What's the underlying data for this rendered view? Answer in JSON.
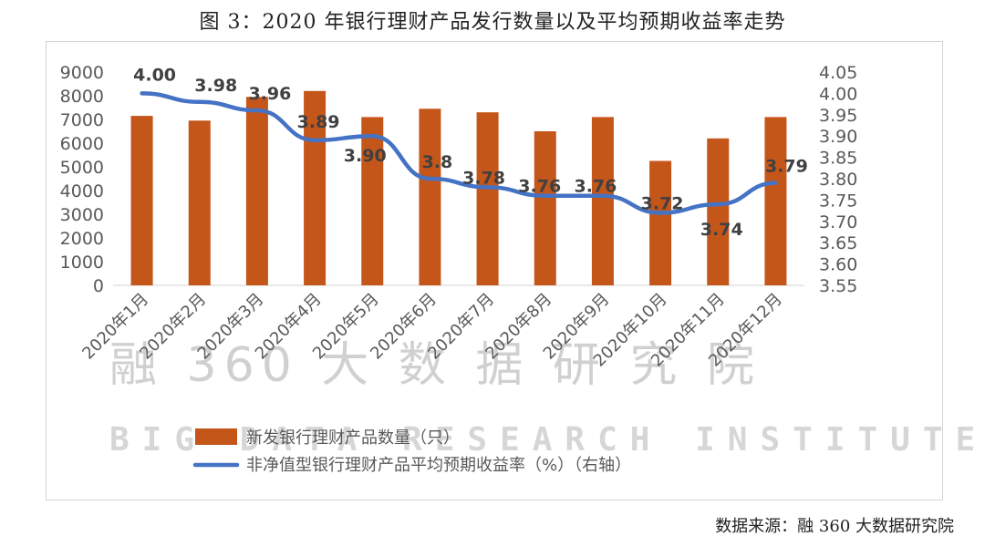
{
  "title": "图 3：2020 年银行理财产品发行数量以及平均预期收益率走势",
  "source": "数据来源：融 360 大数据研究院",
  "watermark": {
    "cn": "融 360 大 数 据 研 究 院",
    "en": "BIG DATA RESEARCH INSTITUTE"
  },
  "chart_data": {
    "type": "bar",
    "categories": [
      "2020年1月",
      "2020年2月",
      "2020年3月",
      "2020年4月",
      "2020年5月",
      "2020年6月",
      "2020年7月",
      "2020年8月",
      "2020年9月",
      "2020年10月",
      "2020年11月",
      "2020年12月"
    ],
    "series": [
      {
        "name": "新发银行理财产品数量（只）",
        "type": "bar",
        "axis": "left",
        "color": "#c5561a",
        "values": [
          7150,
          6950,
          7950,
          8200,
          7100,
          7450,
          7300,
          6500,
          7100,
          5250,
          6200,
          7100
        ]
      },
      {
        "name": "非净值型银行理财产品平均预期收益率（%）（右轴）",
        "type": "line",
        "axis": "right",
        "color": "#4472c4",
        "values": [
          4.0,
          3.98,
          3.96,
          3.89,
          3.9,
          3.8,
          3.78,
          3.76,
          3.76,
          3.72,
          3.74,
          3.79
        ],
        "labels": [
          "4.00",
          "3.98",
          "3.96",
          "3.89",
          "3.90",
          "3.8",
          "3.78",
          "3.76",
          "3.76",
          "3.72",
          "3.74",
          "3.79"
        ]
      }
    ],
    "y_left": {
      "min": 0,
      "max": 9000,
      "step": 1000,
      "ticks": [
        "0",
        "1000",
        "2000",
        "3000",
        "4000",
        "5000",
        "6000",
        "7000",
        "8000",
        "9000"
      ]
    },
    "y_right": {
      "min": 3.55,
      "max": 4.05,
      "step": 0.05,
      "ticks": [
        "3.55",
        "3.60",
        "3.65",
        "3.70",
        "3.75",
        "3.80",
        "3.85",
        "3.90",
        "3.95",
        "4.00",
        "4.05"
      ]
    },
    "grid": false,
    "legend": "bottom"
  }
}
